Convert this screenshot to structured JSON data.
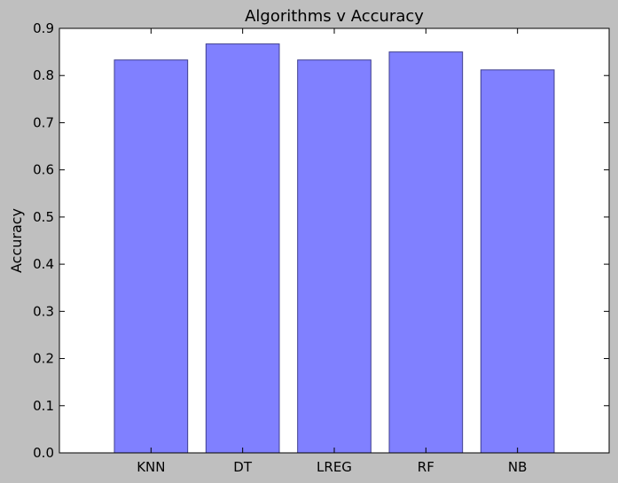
{
  "chart_data": {
    "type": "bar",
    "title": "Algorithms v Accuracy",
    "xlabel": "",
    "ylabel": "Accuracy",
    "categories": [
      "KNN",
      "DT",
      "LREG",
      "RF",
      "NB"
    ],
    "values": [
      0.833,
      0.867,
      0.833,
      0.85,
      0.812
    ],
    "ylim": [
      0,
      0.9
    ],
    "yticks": [
      "0.0",
      "0.1",
      "0.2",
      "0.3",
      "0.4",
      "0.5",
      "0.6",
      "0.7",
      "0.8",
      "0.9"
    ],
    "grid": false,
    "legend": "none",
    "colors": {
      "bar_fill": "#8080ff",
      "bar_edge": "#40408f",
      "figure_background": "#bfbfbf",
      "plot_background": "#ffffff"
    }
  }
}
